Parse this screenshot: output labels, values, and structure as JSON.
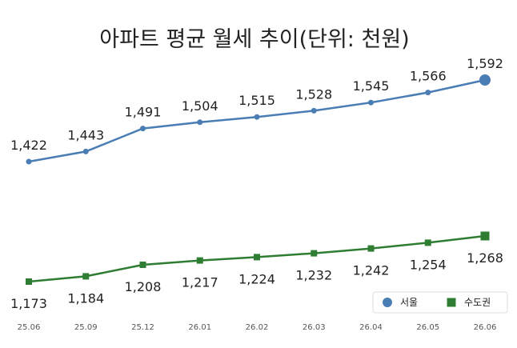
{
  "chart_data": {
    "type": "line",
    "title": "아파트 평균 월세 추이(단위: 천원)",
    "categories": [
      "25.06",
      "25.09",
      "25.12",
      "26.01",
      "26.02",
      "26.03",
      "26.04",
      "26.05",
      "26.06"
    ],
    "series": [
      {
        "name": "서울",
        "color": "#4a7db4",
        "marker": "circle",
        "values": [
          1422,
          1443,
          1491,
          1504,
          1515,
          1528,
          1545,
          1566,
          1592
        ],
        "labels": [
          "1,422",
          "1,443",
          "1,491",
          "1,504",
          "1,515",
          "1,528",
          "1,545",
          "1,566",
          "1,592"
        ]
      },
      {
        "name": "수도권",
        "color": "#2e7d32",
        "marker": "square",
        "values": [
          1173,
          1184,
          1208,
          1217,
          1224,
          1232,
          1242,
          1254,
          1268
        ],
        "labels": [
          "1,173",
          "1,184",
          "1,208",
          "1,217",
          "1,224",
          "1,232",
          "1,242",
          "1,254",
          "1,268"
        ]
      }
    ],
    "legend_position": "bottom-right",
    "grid": false
  }
}
